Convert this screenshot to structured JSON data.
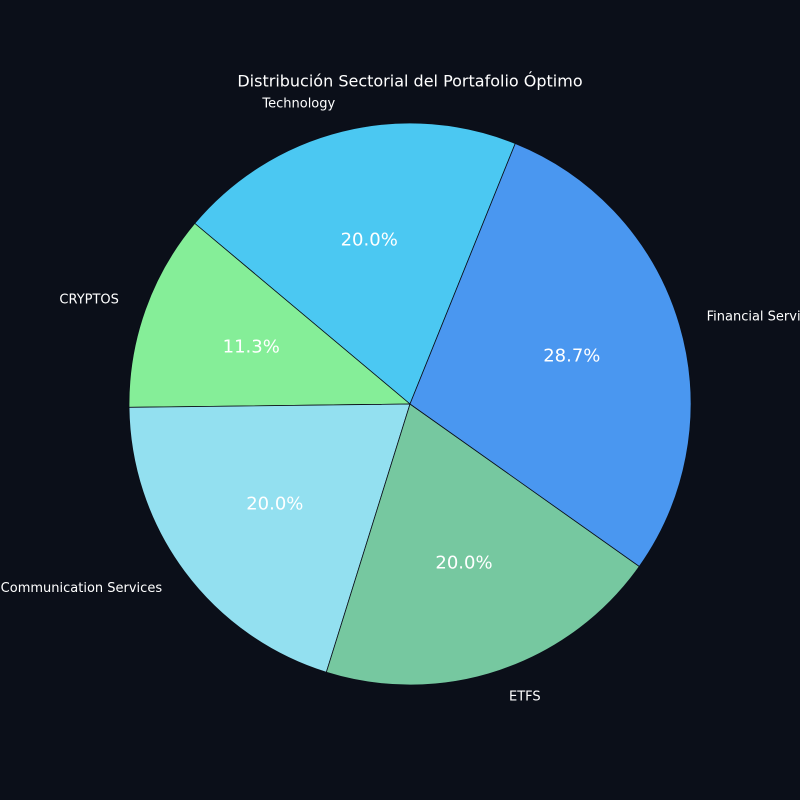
{
  "chart_data": {
    "type": "pie",
    "title": "Distribución Sectorial del Portafolio Óptimo",
    "categories": [
      "Technology",
      "CRYPTOS",
      "Communication Services",
      "ETFS",
      "Financial Services"
    ],
    "values": [
      20.0,
      11.3,
      20.0,
      20.0,
      28.7
    ],
    "value_labels": [
      "20.0%",
      "11.3%",
      "20.0%",
      "20.0%",
      "28.7%"
    ],
    "colors": [
      "#4bc8f2",
      "#85ee98",
      "#93e0f0",
      "#76c8a0",
      "#4a97f0"
    ]
  }
}
